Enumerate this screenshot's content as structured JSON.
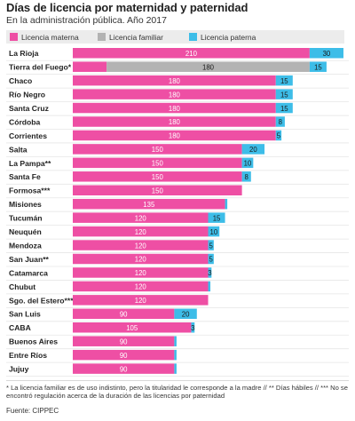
{
  "title": "Días de licencia por maternidad y paternidad",
  "subtitle": "En la administración pública. Año 2017",
  "legend": {
    "items": [
      {
        "label": "Licencia materna",
        "color": "#ee4fa4"
      },
      {
        "label": "Licencia familiar",
        "color": "#b3b3b3"
      },
      {
        "label": "Licencia paterna",
        "color": "#3dbde8"
      }
    ]
  },
  "footnote": "* La licencia familiar es de uso indistinto, pero la titularidad le corresponde a la madre // ** Días hábiles // *** No se encontró regulación acerca de la duración de las licencias por paternidad",
  "source": "Fuente: CIPPEC",
  "chart_data": {
    "type": "bar",
    "orientation": "horizontal",
    "stacked": true,
    "xlim": [
      0,
      240
    ],
    "grid": false,
    "categories": [
      "La Rioja",
      "Tierra del Fuego*",
      "Chaco",
      "Río Negro",
      "Santa Cruz",
      "Córdoba",
      "Corrientes",
      "Salta",
      "La Pampa**",
      "Santa Fe",
      "Formosa***",
      "Misiones",
      "Tucumán",
      "Neuquén",
      "Mendoza",
      "San Juan**",
      "Catamarca",
      "Chubut",
      "Sgo. del Estero***",
      "San Luis",
      "CABA",
      "Buenos Aires",
      "Entre Ríos",
      "Jujuy"
    ],
    "series": [
      {
        "name": "Licencia materna",
        "color": "#ee4fa4",
        "values": [
          210,
          30,
          180,
          180,
          180,
          180,
          180,
          150,
          150,
          150,
          150,
          135,
          120,
          120,
          120,
          120,
          120,
          120,
          120,
          90,
          105,
          90,
          90,
          90
        ]
      },
      {
        "name": "Licencia familiar",
        "color": "#b3b3b3",
        "values": [
          0,
          180,
          0,
          0,
          0,
          0,
          0,
          0,
          0,
          0,
          0,
          0,
          0,
          0,
          0,
          0,
          0,
          0,
          0,
          0,
          0,
          0,
          0,
          0
        ]
      },
      {
        "name": "Licencia paterna",
        "color": "#3dbde8",
        "values": [
          30,
          15,
          15,
          15,
          15,
          8,
          5,
          20,
          10,
          8,
          0,
          2,
          15,
          10,
          5,
          5,
          3,
          2,
          0,
          20,
          3,
          2,
          2,
          2
        ]
      }
    ],
    "data_labels": [
      [
        "210",
        "",
        "30"
      ],
      [
        "",
        "180",
        "15"
      ],
      [
        "180",
        "",
        "15"
      ],
      [
        "180",
        "",
        "15"
      ],
      [
        "180",
        "",
        "15"
      ],
      [
        "180",
        "",
        "8"
      ],
      [
        "180",
        "",
        "5"
      ],
      [
        "150",
        "",
        "20"
      ],
      [
        "150",
        "",
        "10"
      ],
      [
        "150",
        "",
        "8"
      ],
      [
        "150",
        "",
        ""
      ],
      [
        "135",
        "",
        ""
      ],
      [
        "120",
        "",
        "15"
      ],
      [
        "120",
        "",
        "10"
      ],
      [
        "120",
        "",
        "5"
      ],
      [
        "120",
        "",
        "5"
      ],
      [
        "120",
        "",
        "3"
      ],
      [
        "120",
        "",
        ""
      ],
      [
        "120",
        "",
        ""
      ],
      [
        "90",
        "",
        "20"
      ],
      [
        "105",
        "",
        "3"
      ],
      [
        "90",
        "",
        ""
      ],
      [
        "90",
        "",
        ""
      ],
      [
        "90",
        "",
        ""
      ]
    ]
  }
}
